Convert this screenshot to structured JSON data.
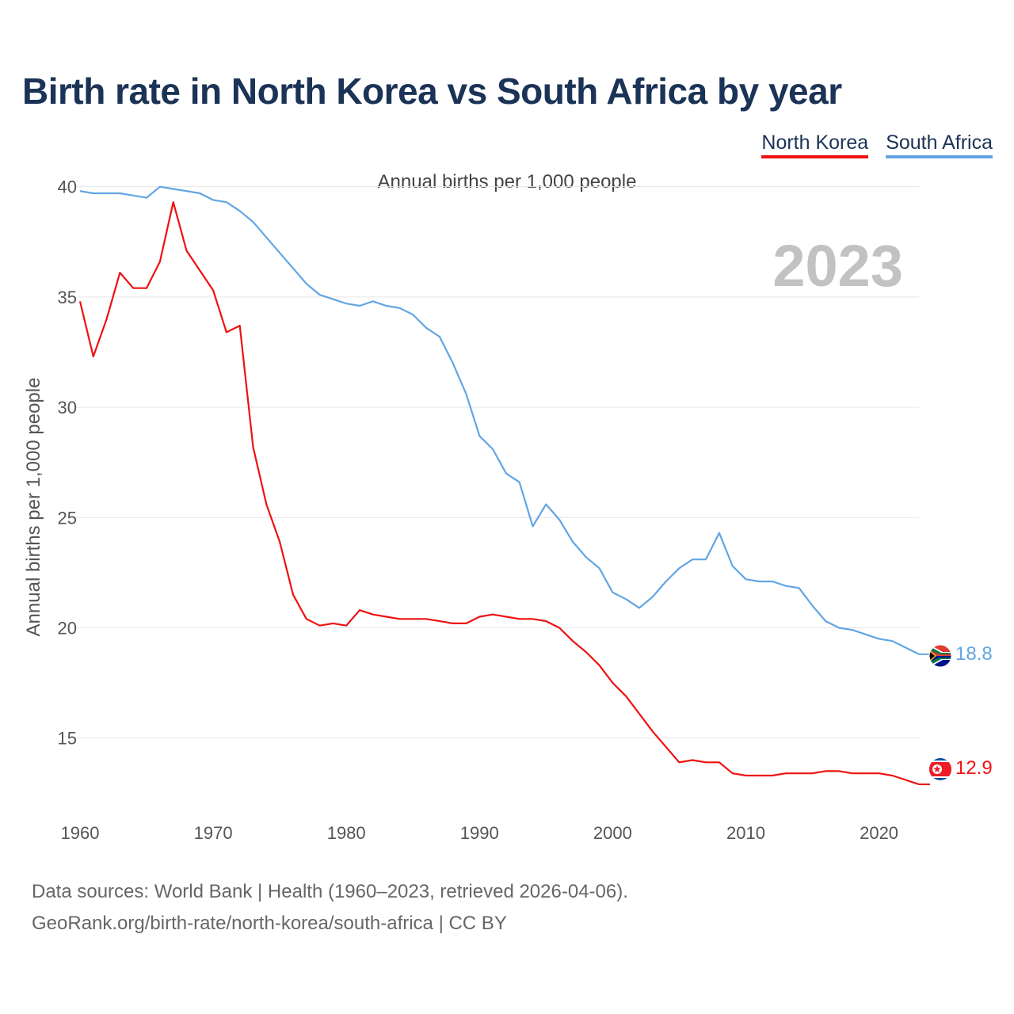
{
  "chart_data": {
    "type": "line",
    "title": "Birth rate in North Korea vs South Africa by year",
    "subtitle": "Annual births per 1,000 people",
    "ylabel": "Annual births per 1,000 people",
    "xlabel": "",
    "ylim": [
      11,
      42
    ],
    "xlim": [
      1960,
      2023
    ],
    "yticks": [
      15,
      20,
      25,
      30,
      35,
      40
    ],
    "xticks": [
      1960,
      1970,
      1980,
      1990,
      2000,
      2010,
      2020
    ],
    "year_badge": "2023",
    "grid": true,
    "legend_position": "top-right",
    "x": [
      1960,
      1961,
      1962,
      1963,
      1964,
      1965,
      1966,
      1967,
      1968,
      1969,
      1970,
      1971,
      1972,
      1973,
      1974,
      1975,
      1976,
      1977,
      1978,
      1979,
      1980,
      1981,
      1982,
      1983,
      1984,
      1985,
      1986,
      1987,
      1988,
      1989,
      1990,
      1991,
      1992,
      1993,
      1994,
      1995,
      1996,
      1997,
      1998,
      1999,
      2000,
      2001,
      2002,
      2003,
      2004,
      2005,
      2006,
      2007,
      2008,
      2009,
      2010,
      2011,
      2012,
      2013,
      2014,
      2015,
      2016,
      2017,
      2018,
      2019,
      2020,
      2021,
      2022,
      2023
    ],
    "series": [
      {
        "name": "North Korea",
        "color": "#ee1111",
        "end_label": "12.9",
        "values": [
          34.8,
          32.3,
          34.0,
          36.1,
          35.4,
          35.4,
          36.6,
          39.3,
          37.1,
          36.2,
          35.3,
          33.4,
          33.7,
          28.2,
          25.6,
          23.9,
          21.5,
          20.4,
          20.1,
          20.2,
          20.1,
          20.8,
          20.6,
          20.5,
          20.4,
          20.4,
          20.4,
          20.3,
          20.2,
          20.2,
          20.5,
          20.6,
          20.5,
          20.4,
          20.4,
          20.3,
          20.0,
          19.4,
          18.9,
          18.3,
          17.5,
          16.9,
          16.1,
          15.3,
          14.6,
          13.9,
          14.0,
          13.9,
          13.9,
          13.4,
          13.3,
          13.3,
          13.3,
          13.4,
          13.4,
          13.4,
          13.5,
          13.5,
          13.4,
          13.4,
          13.4,
          13.3,
          13.1,
          12.9
        ]
      },
      {
        "name": "South Africa",
        "color": "#62a5e3",
        "end_label": "18.8",
        "values": [
          39.8,
          39.7,
          39.7,
          39.7,
          39.6,
          39.5,
          40.0,
          39.9,
          39.8,
          39.7,
          39.4,
          39.3,
          38.9,
          38.4,
          37.7,
          37.0,
          36.3,
          35.6,
          35.1,
          34.9,
          34.7,
          34.6,
          34.8,
          34.6,
          34.5,
          34.2,
          33.6,
          33.2,
          32.0,
          30.6,
          28.7,
          28.1,
          27.0,
          26.6,
          24.6,
          25.6,
          24.9,
          23.9,
          23.2,
          22.7,
          21.6,
          21.3,
          20.9,
          21.4,
          22.1,
          22.7,
          23.1,
          23.1,
          24.3,
          22.8,
          22.2,
          22.1,
          22.1,
          21.9,
          21.8,
          21.0,
          20.3,
          20.0,
          19.9,
          19.7,
          19.5,
          19.4,
          19.1,
          18.8
        ]
      }
    ]
  },
  "footer": {
    "line1": "Data sources: World Bank | Health (1960–2023, retrieved 2026-04-06).",
    "line2": "GeoRank.org/birth-rate/north-korea/south-africa | CC BY"
  }
}
